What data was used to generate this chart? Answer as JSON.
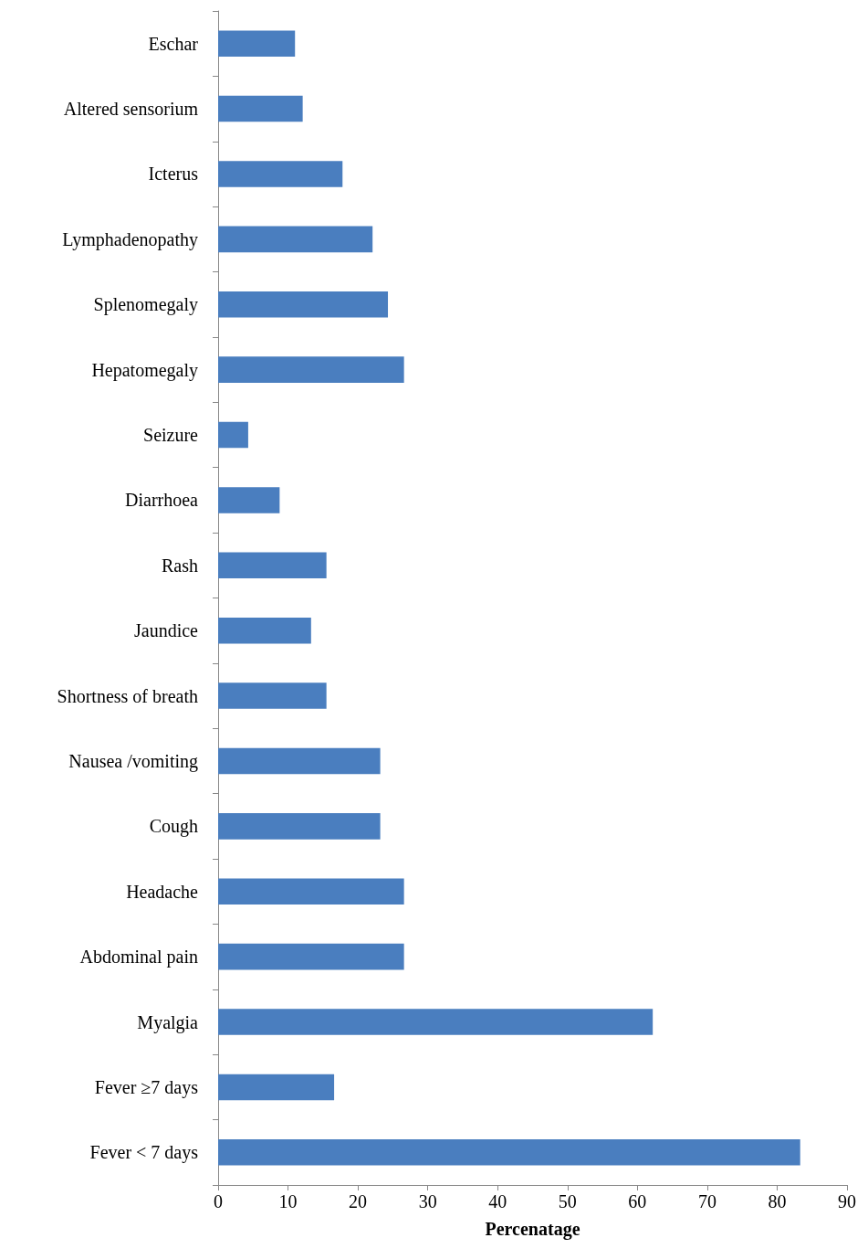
{
  "chart_data": {
    "type": "bar",
    "orientation": "horizontal",
    "xlabel": "Percenatage",
    "categories": [
      "Eschar",
      "Altered sensorium",
      "Icterus",
      "Lymphadenopathy",
      "Splenomegaly",
      "Hepatomegaly",
      "Seizure",
      "Diarrhoea",
      "Rash",
      "Jaundice",
      "Shortness of breath",
      "Nausea /vomiting",
      "Cough",
      "Headache",
      "Abdominal pain",
      "Myalgia",
      "Fever ≥7 days",
      "Fever < 7 days"
    ],
    "values": [
      11.0,
      12.1,
      17.8,
      22.1,
      24.3,
      26.6,
      4.3,
      8.8,
      15.5,
      13.3,
      15.5,
      23.2,
      23.2,
      26.6,
      26.6,
      62.2,
      16.6,
      83.3
    ],
    "color": "#4a7ebf",
    "xlim": [
      0,
      90
    ],
    "xticks": [
      0,
      10,
      20,
      30,
      40,
      50,
      60,
      70,
      80,
      90
    ],
    "grid": false
  }
}
